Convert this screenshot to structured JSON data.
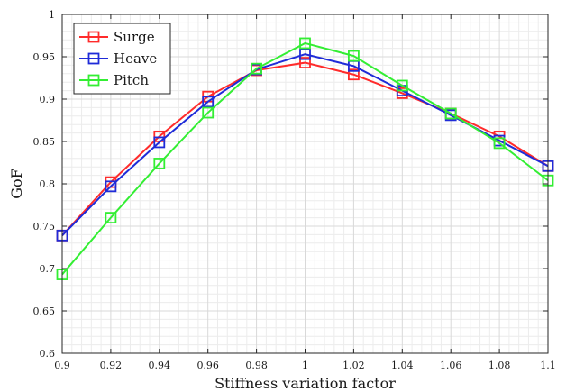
{
  "chart_data": {
    "type": "line",
    "xlabel": "Stiffness variation factor",
    "ylabel": "GoF",
    "xlim": [
      0.9,
      1.1
    ],
    "ylim": [
      0.6,
      1.0
    ],
    "x": [
      0.9,
      0.92,
      0.94,
      0.96,
      0.98,
      1.0,
      1.02,
      1.04,
      1.06,
      1.08,
      1.1
    ],
    "x_ticks": [
      "0.9",
      "0.92",
      "0.94",
      "0.96",
      "0.98",
      "1",
      "1.02",
      "1.04",
      "1.06",
      "1.08",
      "1.1"
    ],
    "y_ticks": [
      "0.6",
      "0.65",
      "0.7",
      "0.75",
      "0.8",
      "0.85",
      "0.9",
      "0.95",
      "1"
    ],
    "grid": true,
    "minor_grid": true,
    "legend_position": "top-left",
    "marker": "square",
    "series": [
      {
        "name": "Surge",
        "color": "#ff2b2b",
        "values": [
          0.739,
          0.802,
          0.856,
          0.903,
          0.934,
          0.943,
          0.929,
          0.907,
          0.883,
          0.856,
          0.821
        ]
      },
      {
        "name": "Heave",
        "color": "#1f2bd8",
        "values": [
          0.739,
          0.797,
          0.849,
          0.897,
          0.935,
          0.953,
          0.939,
          0.91,
          0.881,
          0.851,
          0.821
        ]
      },
      {
        "name": "Pitch",
        "color": "#33ee33",
        "values": [
          0.693,
          0.76,
          0.824,
          0.884,
          0.936,
          0.966,
          0.951,
          0.916,
          0.883,
          0.848,
          0.804
        ]
      }
    ]
  }
}
